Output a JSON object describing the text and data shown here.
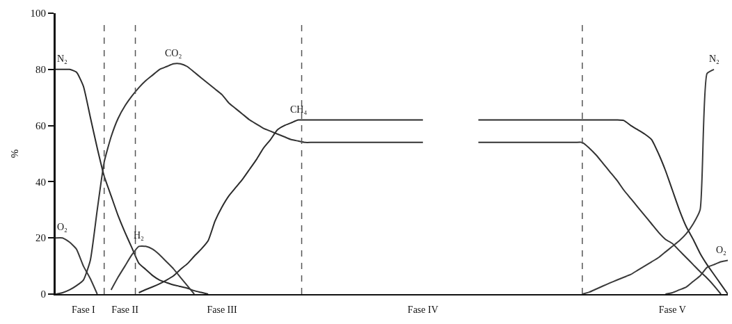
{
  "chart_data": {
    "type": "line",
    "ylabel": "%",
    "categories": [
      null,
      null,
      null,
      null,
      "Fase I",
      null,
      null,
      null,
      null,
      null,
      "Fase II",
      null,
      null,
      null,
      null,
      null,
      null,
      null,
      null,
      null,
      null,
      null,
      null,
      null,
      "Fase III",
      null,
      null,
      null,
      null,
      null,
      null,
      null,
      null,
      null,
      null,
      null,
      null,
      null,
      null,
      null,
      null,
      null,
      null,
      null,
      null,
      null,
      null,
      null,
      null,
      null,
      null,
      null,
      null,
      "Fase IV",
      null,
      null,
      null,
      null,
      null,
      null,
      null,
      null,
      null,
      null,
      null,
      null,
      null,
      null,
      null,
      null,
      null,
      null,
      null,
      null,
      null,
      null,
      null,
      null,
      null,
      null,
      null,
      null,
      null,
      null,
      null,
      null,
      null,
      null,
      null,
      "Fase V",
      null,
      null,
      null,
      null,
      null,
      null,
      null,
      null
    ],
    "ylim": [
      0,
      100
    ],
    "yticks": [
      0,
      20,
      40,
      60,
      80,
      100
    ],
    "legend": false,
    "line_style": "solid",
    "series": [
      {
        "name": "N₂",
        "color": "#2b2b2b",
        "values": [
          80,
          80,
          80,
          79,
          74,
          63,
          52,
          42,
          35,
          28,
          22,
          16.5,
          11,
          8.8,
          6.6,
          5,
          4.1,
          3.3,
          2.7,
          2.1,
          1.2,
          0.6,
          0,
          null,
          null,
          null,
          null,
          null,
          null,
          null,
          null,
          null,
          null,
          null,
          null,
          null,
          null,
          null,
          null,
          null,
          null,
          null,
          null,
          null,
          null,
          null,
          null,
          null,
          null,
          null,
          null,
          null,
          null,
          null,
          null,
          null,
          null,
          null,
          null,
          null,
          null,
          null,
          null,
          null,
          null,
          null,
          null,
          null,
          null,
          null,
          null,
          null,
          null,
          null,
          null,
          null,
          null,
          null,
          null,
          null,
          null,
          null,
          null,
          null,
          null,
          null,
          null,
          null,
          null,
          null,
          null,
          null,
          null,
          null,
          null,
          null,
          null,
          null
        ]
      },
      {
        "name": "O₂",
        "color": "#3a3a3a",
        "values": [
          20,
          20,
          18.5,
          16,
          10,
          5.5,
          0,
          null,
          null,
          null,
          null,
          null,
          null,
          null,
          null,
          null,
          null,
          null,
          null,
          null,
          null,
          null,
          null,
          null,
          null,
          null,
          null,
          null,
          null,
          null,
          null,
          null,
          null,
          null,
          null,
          null,
          null,
          null,
          null,
          null,
          null,
          null,
          null,
          null,
          null,
          null,
          null,
          null,
          null,
          null,
          null,
          null,
          null,
          null,
          null,
          null,
          null,
          null,
          null,
          null,
          null,
          null,
          null,
          null,
          null,
          null,
          null,
          null,
          null,
          null,
          null,
          null,
          null,
          null,
          null,
          null,
          null,
          null,
          null,
          null,
          null,
          null,
          null,
          null,
          null,
          null,
          null,
          null,
          null,
          null,
          null,
          null,
          null,
          null,
          null,
          null,
          null,
          null
        ]
      },
      {
        "name": "CO₂",
        "color": "#333333",
        "values": [
          0,
          0.5,
          1.5,
          3,
          5,
          12,
          30,
          47,
          56,
          62.5,
          67,
          70.5,
          73.5,
          76,
          78,
          80,
          81,
          82,
          82,
          81,
          79,
          77,
          75,
          73,
          71,
          68,
          66,
          64,
          62,
          60.5,
          59,
          58,
          57,
          56,
          55,
          54.5,
          54,
          54,
          54,
          54,
          54,
          54,
          54,
          54,
          54,
          54,
          54,
          54,
          54,
          54,
          54,
          54,
          54,
          54,
          null,
          null,
          null,
          null,
          null,
          null,
          null,
          54,
          54,
          54,
          54,
          54,
          54,
          54,
          54,
          54,
          54,
          54,
          54,
          54,
          54,
          54,
          54,
          52,
          49.5,
          46.5,
          43.5,
          40.5,
          37,
          34,
          31,
          28,
          25,
          22,
          19.5,
          18,
          15.5,
          13,
          10.5,
          8,
          5.7,
          3,
          0,
          null
        ]
      },
      {
        "name": "CH₄",
        "color": "#2b2b2b",
        "values": [
          null,
          null,
          null,
          null,
          null,
          null,
          null,
          null,
          null,
          null,
          null,
          null,
          0.5,
          1.6,
          2.6,
          3.7,
          5,
          6.5,
          8.8,
          10.8,
          13.5,
          16,
          19,
          26,
          31,
          35,
          38,
          41,
          44.5,
          48,
          52,
          55,
          58.5,
          60,
          61,
          62,
          62,
          62,
          62,
          62,
          62,
          62,
          62,
          62,
          62,
          62,
          62,
          62,
          62,
          62,
          62,
          62,
          62,
          62,
          null,
          null,
          null,
          null,
          null,
          null,
          null,
          62,
          62,
          62,
          62,
          62,
          62,
          62,
          62,
          62,
          62,
          62,
          62,
          62,
          62,
          62,
          62,
          62,
          62,
          62,
          62,
          62,
          61.8,
          60,
          58.5,
          57,
          55,
          50,
          44,
          37,
          30,
          24,
          19.5,
          14.5,
          10.5,
          7,
          3.5,
          0
        ]
      },
      {
        "name": "H₂",
        "color": "#3a3a3a",
        "values": [
          null,
          null,
          null,
          null,
          null,
          null,
          null,
          null,
          1.5,
          6,
          10,
          14,
          17,
          17,
          16,
          14,
          11.5,
          9,
          6,
          3,
          0,
          null,
          null,
          null,
          null,
          null,
          null,
          null,
          null,
          null,
          null,
          null,
          null,
          null,
          null,
          null,
          null,
          null,
          null,
          null,
          null,
          null,
          null,
          null,
          null,
          null,
          null,
          null,
          null,
          null,
          null,
          null,
          null,
          null,
          null,
          null,
          null,
          null,
          null,
          null,
          null,
          null,
          null,
          null,
          null,
          null,
          null,
          null,
          null,
          null,
          null,
          null,
          null,
          null,
          null,
          null,
          null,
          null,
          null,
          null,
          null,
          null,
          null,
          null,
          null,
          null,
          null,
          null,
          null,
          null,
          null,
          null,
          null,
          null,
          null,
          null,
          null,
          null
        ]
      },
      {
        "name": "N₂",
        "color": "#3a3a3a",
        "values": [
          null,
          null,
          null,
          null,
          null,
          null,
          null,
          null,
          null,
          null,
          null,
          null,
          null,
          null,
          null,
          null,
          null,
          null,
          null,
          null,
          null,
          null,
          null,
          null,
          null,
          null,
          null,
          null,
          null,
          null,
          null,
          null,
          null,
          null,
          null,
          null,
          null,
          null,
          null,
          null,
          null,
          null,
          null,
          null,
          null,
          null,
          null,
          null,
          null,
          null,
          null,
          null,
          null,
          null,
          null,
          null,
          null,
          null,
          null,
          null,
          null,
          null,
          null,
          null,
          null,
          null,
          null,
          null,
          null,
          null,
          null,
          null,
          null,
          null,
          null,
          null,
          0,
          0.7,
          1.8,
          2.9,
          4,
          5,
          6,
          7,
          8.5,
          10,
          11.5,
          13,
          15,
          17,
          19,
          21.5,
          25,
          30,
          78.5,
          80,
          null,
          null
        ]
      },
      {
        "name": "O₂",
        "color": "#3a3a3a",
        "values": [
          null,
          null,
          null,
          null,
          null,
          null,
          null,
          null,
          null,
          null,
          null,
          null,
          null,
          null,
          null,
          null,
          null,
          null,
          null,
          null,
          null,
          null,
          null,
          null,
          null,
          null,
          null,
          null,
          null,
          null,
          null,
          null,
          null,
          null,
          null,
          null,
          null,
          null,
          null,
          null,
          null,
          null,
          null,
          null,
          null,
          null,
          null,
          null,
          null,
          null,
          null,
          null,
          null,
          null,
          null,
          null,
          null,
          null,
          null,
          null,
          null,
          null,
          null,
          null,
          null,
          null,
          null,
          null,
          null,
          null,
          null,
          null,
          null,
          null,
          null,
          null,
          null,
          null,
          null,
          null,
          null,
          null,
          null,
          null,
          null,
          null,
          null,
          null,
          0,
          0.5,
          1.5,
          2.5,
          4.5,
          6.5,
          9.5,
          10.5,
          11.5,
          12
        ]
      }
    ]
  }
}
